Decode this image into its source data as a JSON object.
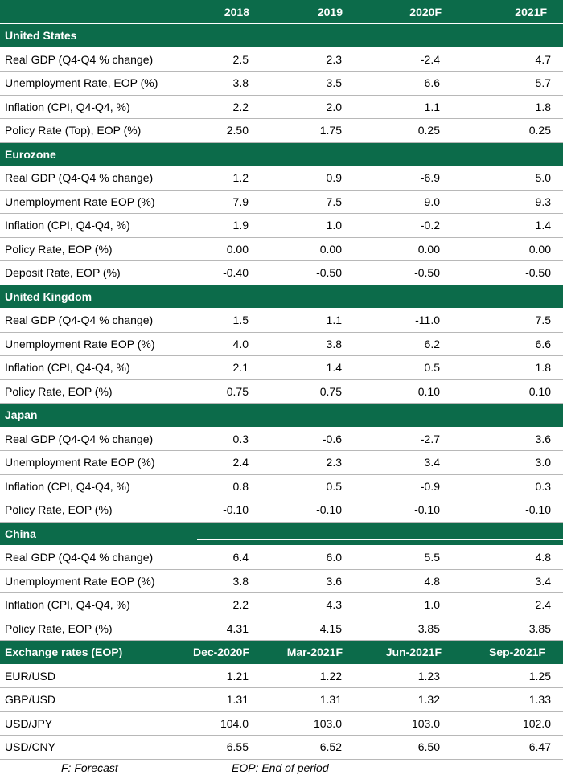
{
  "header": {
    "years": [
      "2018",
      "2019",
      "2020F",
      "2021F"
    ]
  },
  "sections": [
    {
      "name": "United States",
      "rows": [
        {
          "label": "Real GDP (Q4-Q4 % change)",
          "values": [
            "2.5",
            "2.3",
            "-2.4",
            "4.7"
          ]
        },
        {
          "label": "Unemployment Rate, EOP (%)",
          "values": [
            "3.8",
            "3.5",
            "6.6",
            "5.7"
          ]
        },
        {
          "label": "Inflation (CPI, Q4-Q4, %)",
          "values": [
            "2.2",
            "2.0",
            "1.1",
            "1.8"
          ]
        },
        {
          "label": "Policy Rate (Top), EOP (%)",
          "values": [
            "2.50",
            "1.75",
            "0.25",
            "0.25"
          ]
        }
      ]
    },
    {
      "name": "Eurozone",
      "rows": [
        {
          "label": "Real GDP (Q4-Q4 % change)",
          "values": [
            "1.2",
            "0.9",
            "-6.9",
            "5.0"
          ]
        },
        {
          "label": "Unemployment Rate EOP (%)",
          "values": [
            "7.9",
            "7.5",
            "9.0",
            "9.3"
          ]
        },
        {
          "label": "Inflation (CPI, Q4-Q4, %)",
          "values": [
            "1.9",
            "1.0",
            "-0.2",
            "1.4"
          ]
        },
        {
          "label": "Policy Rate, EOP (%)",
          "values": [
            "0.00",
            "0.00",
            "0.00",
            "0.00"
          ]
        },
        {
          "label": "Deposit Rate, EOP (%)",
          "values": [
            "-0.40",
            "-0.50",
            "-0.50",
            "-0.50"
          ]
        }
      ]
    },
    {
      "name": "United Kingdom",
      "rows": [
        {
          "label": "Real GDP (Q4-Q4 % change)",
          "values": [
            "1.5",
            "1.1",
            "-11.0",
            "7.5"
          ]
        },
        {
          "label": "Unemployment Rate EOP (%)",
          "values": [
            "4.0",
            "3.8",
            "6.2",
            "6.6"
          ]
        },
        {
          "label": "Inflation (CPI, Q4-Q4, %)",
          "values": [
            "2.1",
            "1.4",
            "0.5",
            "1.8"
          ]
        },
        {
          "label": "Policy Rate, EOP (%)",
          "values": [
            "0.75",
            "0.75",
            "0.10",
            "0.10"
          ]
        }
      ]
    },
    {
      "name": "Japan",
      "rows": [
        {
          "label": "Real GDP (Q4-Q4 % change)",
          "values": [
            "0.3",
            "-0.6",
            "-2.7",
            "3.6"
          ]
        },
        {
          "label": "Unemployment Rate EOP (%)",
          "values": [
            "2.4",
            "2.3",
            "3.4",
            "3.0"
          ]
        },
        {
          "label": "Inflation (CPI, Q4-Q4, %)",
          "values": [
            "0.8",
            "0.5",
            "-0.9",
            "0.3"
          ]
        },
        {
          "label": "Policy Rate, EOP (%)",
          "values": [
            "-0.10",
            "-0.10",
            "-0.10",
            "-0.10"
          ]
        }
      ]
    },
    {
      "name": "China",
      "rows": [
        {
          "label": "Real GDP (Q4-Q4 % change)",
          "values": [
            "6.4",
            "6.0",
            "5.5",
            "4.8"
          ]
        },
        {
          "label": "Unemployment Rate EOP (%)",
          "values": [
            "3.8",
            "3.6",
            "4.8",
            "3.4"
          ]
        },
        {
          "label": "Inflation (CPI, Q4-Q4, %)",
          "values": [
            "2.2",
            "4.3",
            "1.0",
            "2.4"
          ]
        },
        {
          "label": "Policy Rate, EOP (%)",
          "values": [
            "4.31",
            "4.15",
            "3.85",
            "3.85"
          ]
        }
      ]
    }
  ],
  "fx": {
    "title": "Exchange rates (EOP)",
    "periods": [
      "Dec-2020F",
      "Mar-2021F",
      "Jun-2021F",
      "Sep-2021F"
    ],
    "rows": [
      {
        "label": "EUR/USD",
        "values": [
          "1.21",
          "1.22",
          "1.23",
          "1.25"
        ]
      },
      {
        "label": "GBP/USD",
        "values": [
          "1.31",
          "1.31",
          "1.32",
          "1.33"
        ]
      },
      {
        "label": "USD/JPY",
        "values": [
          "104.0",
          "103.0",
          "103.0",
          "102.0"
        ]
      },
      {
        "label": "USD/CNY",
        "values": [
          "6.55",
          "6.52",
          "6.50",
          "6.47"
        ]
      }
    ]
  },
  "footnotes": {
    "forecast": "F: Forecast",
    "eop": "EOP: End of period"
  },
  "colors": {
    "header_green": "#0c6b4a",
    "text": "#000000",
    "rule": "#b8b8b8"
  }
}
